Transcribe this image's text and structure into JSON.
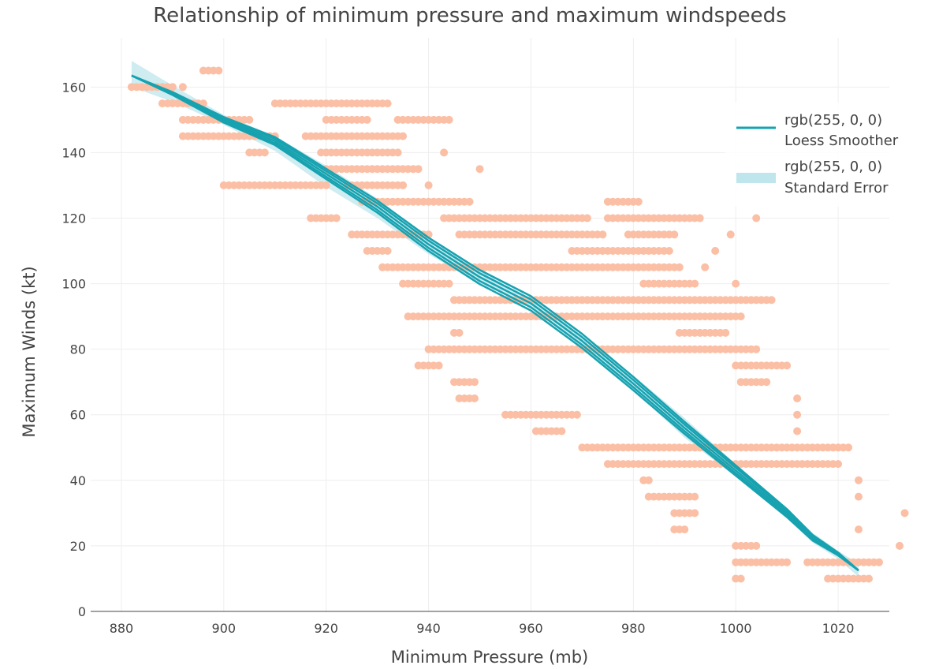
{
  "chart_data": {
    "type": "scatter",
    "title": "Relationship of minimum pressure and maximum windspeeds",
    "xlabel": "Minimum Pressure (mb)",
    "ylabel": "Maximum Winds (kt)",
    "xlim": [
      874,
      1030
    ],
    "ylim": [
      0,
      175
    ],
    "x_ticks": [
      880,
      900,
      920,
      940,
      960,
      980,
      1000,
      1020
    ],
    "y_ticks": [
      0,
      20,
      40,
      60,
      80,
      100,
      120,
      140,
      160
    ],
    "grid": true,
    "legend_position": "top-right",
    "colors": {
      "points": "#fbbfa5",
      "line": "#17a2b0",
      "band": "#bfe6ec"
    },
    "series": [
      {
        "name": "",
        "kind": "points",
        "rows": [
          {
            "y": 10,
            "x": [
              1000,
              1001,
              1018,
              1026
            ]
          },
          {
            "y": 15,
            "x": [
              1000,
              1010,
              1014,
              1028
            ]
          },
          {
            "y": 20,
            "x": [
              1000,
              1004,
              1032
            ]
          },
          {
            "y": 25,
            "x": [
              988,
              990,
              1024
            ]
          },
          {
            "y": 30,
            "x": [
              988,
              992,
              1033
            ]
          },
          {
            "y": 35,
            "x": [
              983,
              992,
              1024
            ]
          },
          {
            "y": 40,
            "x": [
              982,
              983,
              1024
            ]
          },
          {
            "y": 45,
            "x": [
              975,
              1020
            ]
          },
          {
            "y": 50,
            "x": [
              970,
              1022
            ]
          },
          {
            "y": 55,
            "x": [
              961,
              966,
              1012
            ]
          },
          {
            "y": 60,
            "x": [
              955,
              969,
              1012
            ]
          },
          {
            "y": 65,
            "x": [
              946,
              949,
              1012
            ]
          },
          {
            "y": 70,
            "x": [
              945,
              949,
              1001,
              1006
            ]
          },
          {
            "y": 75,
            "x": [
              938,
              942,
              1000,
              1010
            ]
          },
          {
            "y": 80,
            "x": [
              940,
              1004
            ]
          },
          {
            "y": 85,
            "x": [
              945,
              946,
              989,
              998
            ]
          },
          {
            "y": 90,
            "x": [
              936,
              1001
            ]
          },
          {
            "y": 95,
            "x": [
              945,
              1007
            ]
          },
          {
            "y": 100,
            "x": [
              935,
              944,
              982,
              992,
              1000
            ]
          },
          {
            "y": 105,
            "x": [
              931,
              974,
              975,
              989,
              994
            ]
          },
          {
            "y": 110,
            "x": [
              928,
              932,
              968,
              987,
              996
            ]
          },
          {
            "y": 115,
            "x": [
              925,
              940,
              946,
              974,
              979,
              988,
              999
            ]
          },
          {
            "y": 120,
            "x": [
              917,
              922,
              943,
              971,
              975,
              993,
              1004
            ]
          },
          {
            "y": 125,
            "x": [
              927,
              948,
              975,
              981
            ]
          },
          {
            "y": 130,
            "x": [
              900,
              920,
              924,
              935,
              940
            ]
          },
          {
            "y": 135,
            "x": [
              920,
              938,
              950
            ]
          },
          {
            "y": 140,
            "x": [
              905,
              908,
              919,
              934,
              943
            ]
          },
          {
            "y": 145,
            "x": [
              892,
              910,
              916,
              935
            ]
          },
          {
            "y": 150,
            "x": [
              892,
              905,
              920,
              928,
              934,
              944
            ]
          },
          {
            "y": 155,
            "x": [
              888,
              896,
              910,
              932
            ]
          },
          {
            "y": 160,
            "x": [
              882,
              890,
              892
            ]
          },
          {
            "y": 165,
            "x": [
              896,
              899
            ]
          }
        ]
      },
      {
        "name": "rgb(255, 0, 0)\nLoess Smoother",
        "kind": "line",
        "x": [
          882,
          890,
          900,
          910,
          920,
          930,
          940,
          950,
          960,
          970,
          980,
          990,
          1000,
          1010,
          1015,
          1020,
          1024
        ],
        "y": [
          163.5,
          158,
          150,
          143.5,
          133.5,
          123.5,
          112,
          102,
          94,
          82.5,
          69.5,
          56,
          43,
          30,
          22.5,
          17.5,
          12.5
        ]
      },
      {
        "name": "rgb(255, 0, 0)\nStandard Error",
        "kind": "band",
        "x": [
          882,
          890,
          900,
          910,
          920,
          930,
          940,
          950,
          960,
          970,
          980,
          990,
          1000,
          1010,
          1015,
          1020,
          1024
        ],
        "upper": [
          168,
          160.5,
          151.5,
          145,
          136,
          126,
          114,
          104,
          95,
          84,
          72,
          59,
          45,
          31.5,
          24,
          18.5,
          14.5
        ],
        "lower": [
          160,
          155.5,
          148.5,
          140.5,
          129.5,
          120,
          109,
          100,
          93,
          80.5,
          67.5,
          53,
          41,
          28.5,
          21,
          16,
          10.5
        ]
      }
    ],
    "legend": [
      {
        "label": "rgb(255, 0, 0)",
        "sublabel": "Loess Smoother",
        "kind": "line"
      },
      {
        "label": "rgb(255, 0, 0)",
        "sublabel": "Standard Error",
        "kind": "band"
      }
    ]
  }
}
